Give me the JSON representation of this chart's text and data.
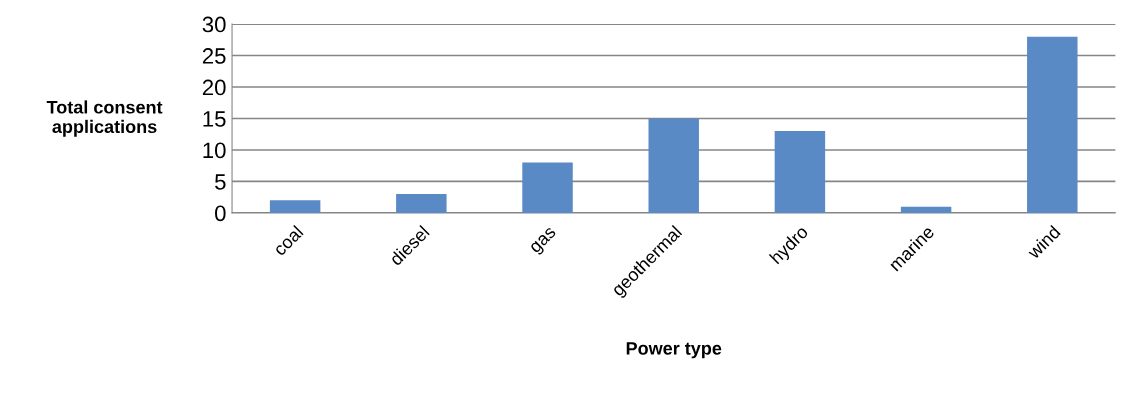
{
  "chart_data": {
    "type": "bar",
    "categories": [
      "coal",
      "diesel",
      "gas",
      "geothermal",
      "hydro",
      "marine",
      "wind"
    ],
    "values": [
      2,
      3,
      8,
      15,
      13,
      1,
      28
    ],
    "color": "#5a8ac6",
    "xlabel": "Power type",
    "ylabel": "Total consent\napplications",
    "ylim": [
      0,
      30
    ],
    "yticks": [
      0,
      5,
      10,
      15,
      20,
      25,
      30
    ],
    "grid": "y",
    "legend": false
  }
}
